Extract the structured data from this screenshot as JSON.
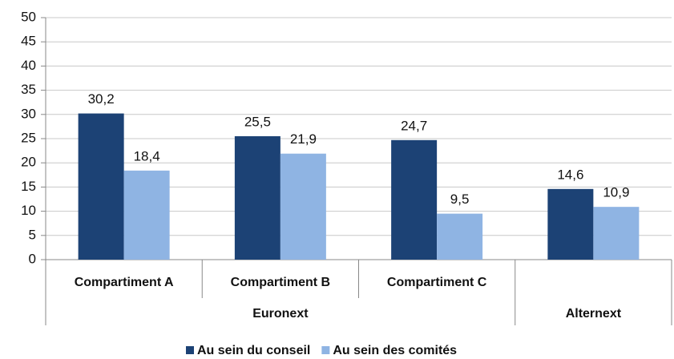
{
  "chart_data": {
    "type": "bar",
    "groups": [
      {
        "label": "Euronext",
        "categories": [
          "Compartiment A",
          "Compartiment B",
          "Compartiment C"
        ]
      },
      {
        "label": "Alternext",
        "categories": [
          null
        ]
      }
    ],
    "series": [
      {
        "name": "Au sein du conseil",
        "color": "#1c4275",
        "values": [
          30.2,
          25.5,
          24.7,
          14.6
        ],
        "value_labels": [
          "30,2",
          "25,5",
          "24,7",
          "14,6"
        ]
      },
      {
        "name": "Au sein des comités",
        "color": "#8fb4e3",
        "values": [
          18.4,
          21.9,
          9.5,
          10.9
        ],
        "value_labels": [
          "18,4",
          "21,9",
          "9,5",
          "10,9"
        ]
      }
    ],
    "ylim": [
      0,
      50
    ],
    "yticks": [
      0,
      5,
      10,
      15,
      20,
      25,
      30,
      35,
      40,
      45,
      50
    ],
    "grid": true,
    "legend": "bottom"
  }
}
